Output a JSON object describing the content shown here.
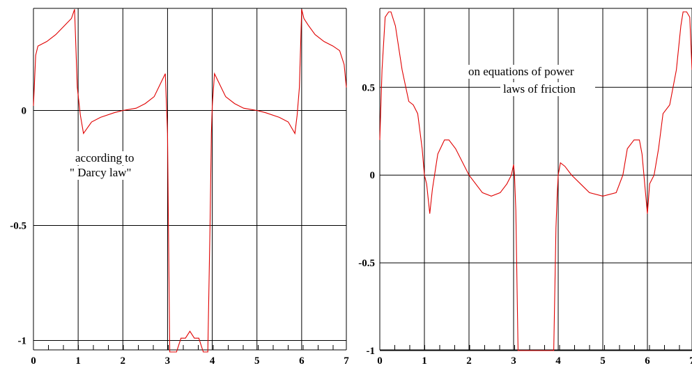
{
  "chart_data": [
    {
      "type": "line",
      "xlim": [
        0,
        7
      ],
      "ylim": [
        -1.05,
        0.45
      ],
      "x_ticks": [
        "0",
        "1",
        "2",
        "3",
        "4",
        "5",
        "6",
        "7"
      ],
      "y_ticks": [
        "0",
        "-0.5",
        "-1"
      ],
      "y_tick_values": [
        0,
        -0.5,
        -1
      ],
      "grid": true,
      "annotation": [
        "according to",
        "\" Darcy law\""
      ],
      "series": [
        {
          "color": "#e00000",
          "x": [
            0,
            0.05,
            0.1,
            0.3,
            0.5,
            0.7,
            0.85,
            0.92,
            0.98,
            1.05,
            1.12,
            1.3,
            1.5,
            1.8,
            2.0,
            2.3,
            2.5,
            2.7,
            2.85,
            2.95,
            3.0,
            3.02,
            3.05,
            3.1,
            3.2,
            3.3,
            3.4,
            3.5,
            3.6,
            3.7,
            3.8,
            3.9,
            3.95,
            3.98,
            4.0,
            4.05,
            4.15,
            4.3,
            4.5,
            4.7,
            5.0,
            5.2,
            5.5,
            5.7,
            5.85,
            5.9,
            5.95,
            6.0,
            6.05,
            6.15,
            6.3,
            6.5,
            6.7,
            6.85,
            6.95,
            7.0
          ],
          "y": [
            0.02,
            0.24,
            0.28,
            0.3,
            0.33,
            0.37,
            0.4,
            0.44,
            0.1,
            -0.02,
            -0.1,
            -0.05,
            -0.03,
            -0.01,
            0.0,
            0.01,
            0.03,
            0.06,
            0.12,
            0.16,
            -0.1,
            -0.5,
            -1.05,
            -1.05,
            -1.05,
            -0.99,
            -0.99,
            -0.96,
            -0.99,
            -0.99,
            -1.05,
            -1.05,
            -0.5,
            -0.1,
            0.02,
            0.16,
            0.12,
            0.06,
            0.03,
            0.01,
            0.0,
            -0.01,
            -0.03,
            -0.05,
            -0.1,
            -0.02,
            0.1,
            0.44,
            0.4,
            0.37,
            0.33,
            0.3,
            0.28,
            0.26,
            0.2,
            0.1
          ]
        }
      ]
    },
    {
      "type": "line",
      "xlim": [
        0,
        7
      ],
      "ylim": [
        -1.0,
        0.95
      ],
      "x_ticks": [
        "0",
        "1",
        "2",
        "3",
        "4",
        "5",
        "6",
        "7"
      ],
      "y_ticks": [
        "0.5",
        "0",
        "-0.5",
        "-1"
      ],
      "y_tick_values": [
        0.5,
        0,
        -0.5,
        -1
      ],
      "grid": true,
      "annotation": [
        "on equations of  power",
        "laws of friction"
      ],
      "series": [
        {
          "color": "#e00000",
          "x": [
            0,
            0.05,
            0.12,
            0.2,
            0.25,
            0.35,
            0.5,
            0.65,
            0.75,
            0.85,
            0.95,
            1.0,
            1.05,
            1.12,
            1.18,
            1.3,
            1.45,
            1.55,
            1.7,
            2.0,
            2.3,
            2.5,
            2.7,
            2.85,
            2.95,
            3.0,
            3.02,
            3.05,
            3.1,
            3.3,
            3.5,
            3.7,
            3.9,
            3.95,
            3.98,
            4.0,
            4.05,
            4.15,
            4.3,
            4.5,
            4.7,
            5.0,
            5.3,
            5.45,
            5.55,
            5.7,
            5.82,
            5.88,
            5.95,
            6.0,
            6.05,
            6.15,
            6.25,
            6.35,
            6.5,
            6.65,
            6.75,
            6.8,
            6.88,
            6.95,
            7.0
          ],
          "y": [
            0.2,
            0.6,
            0.9,
            0.93,
            0.93,
            0.85,
            0.6,
            0.42,
            0.4,
            0.35,
            0.15,
            0.0,
            -0.05,
            -0.22,
            -0.08,
            0.12,
            0.2,
            0.2,
            0.15,
            0.0,
            -0.1,
            -0.12,
            -0.1,
            -0.05,
            0.0,
            0.06,
            0.0,
            -0.2,
            -1.0,
            -1.0,
            -1.0,
            -1.0,
            -1.0,
            -0.3,
            -0.1,
            0.0,
            0.07,
            0.05,
            0.0,
            -0.05,
            -0.1,
            -0.12,
            -0.1,
            0.0,
            0.15,
            0.2,
            0.2,
            0.12,
            -0.08,
            -0.22,
            -0.05,
            0.0,
            0.15,
            0.35,
            0.4,
            0.6,
            0.85,
            0.93,
            0.93,
            0.9,
            0.6
          ]
        }
      ]
    }
  ]
}
